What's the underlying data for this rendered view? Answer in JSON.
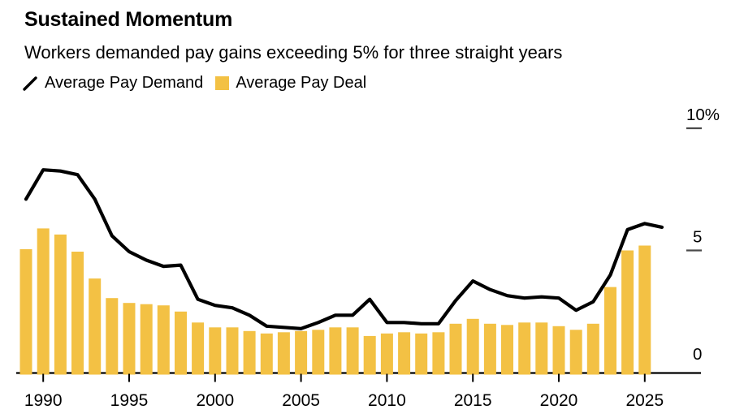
{
  "header": {
    "title": "Sustained Momentum",
    "subtitle": "Workers demanded pay gains exceeding 5% for three straight years"
  },
  "legend": [
    {
      "label": "Average Pay Demand",
      "swatch": "line",
      "color": "#000000"
    },
    {
      "label": "Average Pay Deal",
      "swatch": "square",
      "color": "#F3C144"
    }
  ],
  "colors": {
    "background": "#FFFFFF",
    "bar": "#F3C144",
    "line": "#000000",
    "axis": "#000000",
    "grid_dash": "#4a4a4a",
    "text": "#000000"
  },
  "chart_data": {
    "type": "bar",
    "subtype": "bar+line combo",
    "title": "Sustained Momentum",
    "subtitle": "Workers demanded pay gains exceeding 5% for three straight years",
    "unit": "%",
    "ylim": [
      0,
      10
    ],
    "xlim": [
      1988.4,
      2028
    ],
    "grid": "off",
    "legend_position": "top-left",
    "x_ticks": [
      1990,
      1995,
      2000,
      2005,
      2010,
      2015,
      2020,
      2025
    ],
    "y_ticks": [
      {
        "label": "10%",
        "value": 10
      },
      {
        "label": "5",
        "value": 5
      },
      {
        "label": "0",
        "value": 0
      }
    ],
    "series": [
      {
        "name": "Average Pay Demand",
        "type": "line",
        "color": "#000000",
        "start_year": 1989,
        "values": [
          7.1,
          8.3,
          8.25,
          8.1,
          7.1,
          5.6,
          4.95,
          4.6,
          4.35,
          4.4,
          3.0,
          2.75,
          2.65,
          2.35,
          1.9,
          1.85,
          1.8,
          2.05,
          2.35,
          2.35,
          3.0,
          2.05,
          2.05,
          2.0,
          2.0,
          2.95,
          3.75,
          3.4,
          3.15,
          3.05,
          3.1,
          3.05,
          2.55,
          2.9,
          4.0,
          5.85,
          6.1,
          5.95
        ]
      },
      {
        "name": "Average Pay Deal",
        "type": "bar",
        "color": "#F3C144",
        "start_year": 1989,
        "values": [
          5.05,
          5.9,
          5.65,
          4.95,
          3.85,
          3.05,
          2.85,
          2.8,
          2.75,
          2.5,
          2.05,
          1.85,
          1.85,
          1.7,
          1.6,
          1.65,
          1.7,
          1.75,
          1.85,
          1.85,
          1.5,
          1.6,
          1.65,
          1.6,
          1.65,
          2.0,
          2.2,
          2.0,
          1.95,
          2.05,
          2.05,
          1.9,
          1.75,
          2.0,
          3.5,
          5.0,
          5.2
        ]
      }
    ]
  }
}
